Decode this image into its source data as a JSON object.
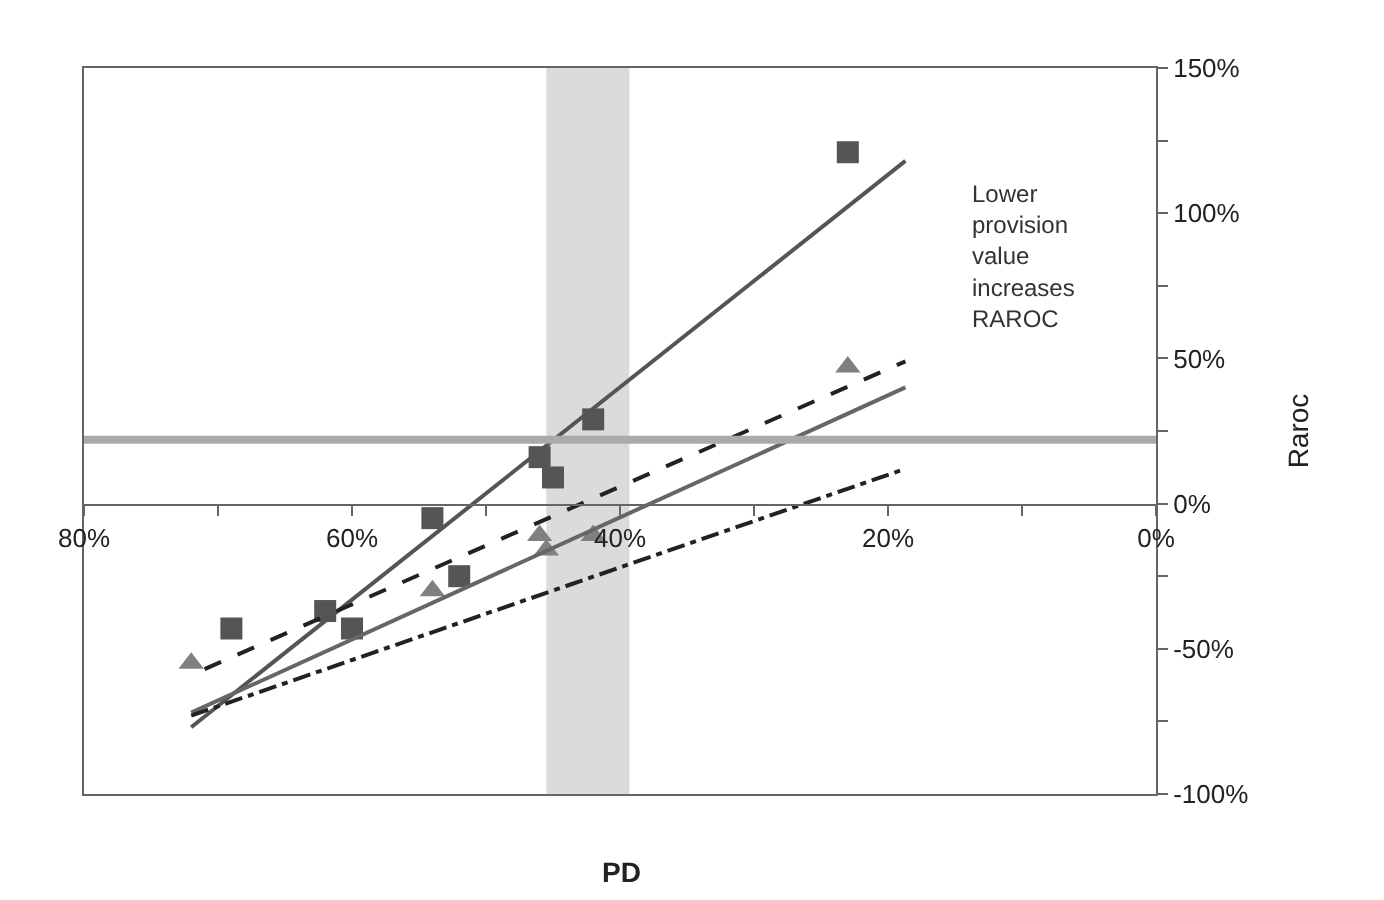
{
  "chart_data": {
    "type": "scatter",
    "xlabel": "PD",
    "ylabel": "Raroc",
    "xlim": [
      80,
      0
    ],
    "ylim": [
      -100,
      150
    ],
    "xticks": [
      {
        "value": 80,
        "label": "80%"
      },
      {
        "value": 70,
        "label": null
      },
      {
        "value": 60,
        "label": "60%"
      },
      {
        "value": 50,
        "label": null
      },
      {
        "value": 40,
        "label": "40%"
      },
      {
        "value": 30,
        "label": null
      },
      {
        "value": 20,
        "label": "20%"
      },
      {
        "value": 10,
        "label": null
      },
      {
        "value": 0,
        "label": "0%"
      }
    ],
    "yticks": [
      {
        "value": -100,
        "label": "-100%"
      },
      {
        "value": -75,
        "label": null
      },
      {
        "value": -50,
        "label": "-50%"
      },
      {
        "value": -25,
        "label": null
      },
      {
        "value": 0,
        "label": "0%"
      },
      {
        "value": 25,
        "label": null
      },
      {
        "value": 50,
        "label": "50%"
      },
      {
        "value": 75,
        "label": null
      },
      {
        "value": 100,
        "label": "100%"
      },
      {
        "value": 125,
        "label": null
      },
      {
        "value": 150,
        "label": "150%"
      }
    ],
    "grid": false,
    "legend": false,
    "series": [
      {
        "marker": "square",
        "color": "#555555",
        "x": [
          69,
          62,
          60,
          54,
          52,
          46,
          45,
          42,
          23
        ],
        "values": [
          -43,
          -37,
          -43,
          -5,
          -25,
          16,
          9,
          29,
          121
        ]
      },
      {
        "marker": "triangle",
        "color": "#808080",
        "x": [
          72,
          54,
          46,
          45.5,
          42,
          23
        ],
        "values": [
          -55,
          -30,
          -11,
          -16,
          -11,
          47
        ]
      },
      {
        "type": "line",
        "marker": "none",
        "line_style": "solid",
        "color": "#555555",
        "x": [
          72,
          18.7
        ],
        "values": [
          -77,
          118
        ]
      },
      {
        "type": "line",
        "marker": "none",
        "line_style": "solid",
        "color": "#666666",
        "x": [
          72,
          18.7
        ],
        "values": [
          -72,
          40
        ]
      },
      {
        "type": "line",
        "marker": "none",
        "line_style": "dashed",
        "color": "#222222",
        "x": [
          71,
          18.7
        ],
        "values": [
          -57,
          49
        ]
      },
      {
        "type": "line",
        "marker": "none",
        "line_style": "dashdot",
        "color": "#222222",
        "x": [
          72,
          18.7
        ],
        "values": [
          -73,
          12
        ]
      }
    ],
    "ref_lines": [
      {
        "axis": "y",
        "value": 22,
        "color": "#aaaaaa"
      }
    ],
    "bands": [
      {
        "axis": "x",
        "from": 45.2,
        "to": 39.6,
        "color": "#999999"
      }
    ],
    "annotations": [
      "Lower provision value increases RAROC"
    ]
  }
}
